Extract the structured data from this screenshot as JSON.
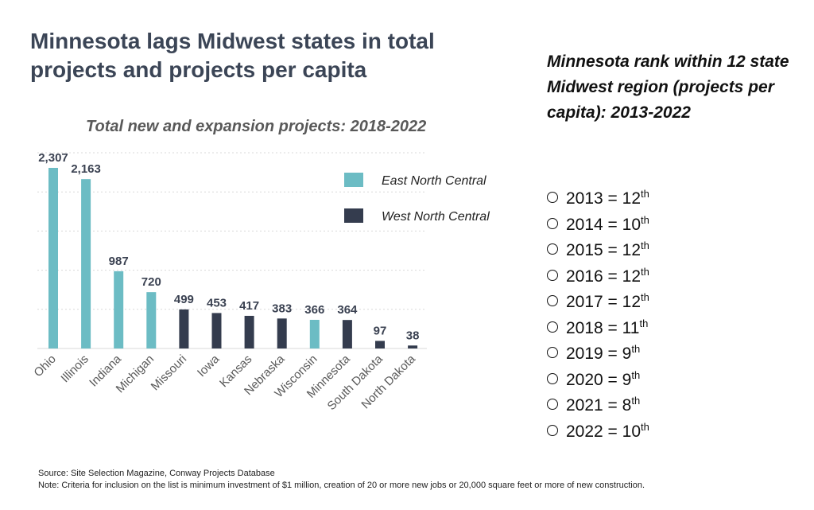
{
  "title": "Minnesota lags Midwest states in total projects and projects per capita",
  "chart_data": {
    "type": "bar",
    "title": "Total new and expansion projects: 2018-2022",
    "categories": [
      "Ohio",
      "Illinois",
      "Indiana",
      "Michigan",
      "Missouri",
      "Iowa",
      "Kansas",
      "Nebraska",
      "Wisconsin",
      "Minnesota",
      "South Dakota",
      "North Dakota"
    ],
    "values": [
      2307,
      2163,
      987,
      720,
      499,
      453,
      417,
      383,
      366,
      364,
      97,
      38
    ],
    "value_labels": [
      "2,307",
      "2,163",
      "987",
      "720",
      "499",
      "453",
      "417",
      "383",
      "366",
      "364",
      "97",
      "38"
    ],
    "groups": [
      "East North Central",
      "East North Central",
      "East North Central",
      "East North Central",
      "West North Central",
      "West North Central",
      "West North Central",
      "West North Central",
      "East North Central",
      "West North Central",
      "West North Central",
      "West North Central"
    ],
    "legend": [
      {
        "name": "East North Central",
        "color": "#6cbcc4"
      },
      {
        "name": "West North Central",
        "color": "#343c4e"
      }
    ],
    "legend_position": "top-right",
    "ylim": [
      0,
      2500
    ],
    "grid": true,
    "grid_step": 500,
    "y_axis_visible": false,
    "xlabel": "",
    "ylabel": ""
  },
  "ranks": {
    "title": "Minnesota rank within 12 state Midwest region (projects per capita): 2013-2022",
    "items": [
      {
        "year": "2013",
        "rank": "12",
        "suffix": "th"
      },
      {
        "year": "2014",
        "rank": "10",
        "suffix": "th"
      },
      {
        "year": "2015",
        "rank": "12",
        "suffix": "th"
      },
      {
        "year": "2016",
        "rank": "12",
        "suffix": "th"
      },
      {
        "year": "2017",
        "rank": "12",
        "suffix": "th"
      },
      {
        "year": "2018",
        "rank": "11",
        "suffix": "th"
      },
      {
        "year": "2019",
        "rank": "9",
        "suffix": "th"
      },
      {
        "year": "2020",
        "rank": "9",
        "suffix": "th"
      },
      {
        "year": "2021",
        "rank": "8",
        "suffix": "th"
      },
      {
        "year": "2022",
        "rank": "10",
        "suffix": "th"
      }
    ]
  },
  "footer": {
    "source": "Source: Site Selection Magazine, Conway Projects Database",
    "note": "Note: Criteria for inclusion on the list is minimum investment of $1 million, creation of 20 or more new jobs or 20,000 square feet or more of new construction."
  }
}
